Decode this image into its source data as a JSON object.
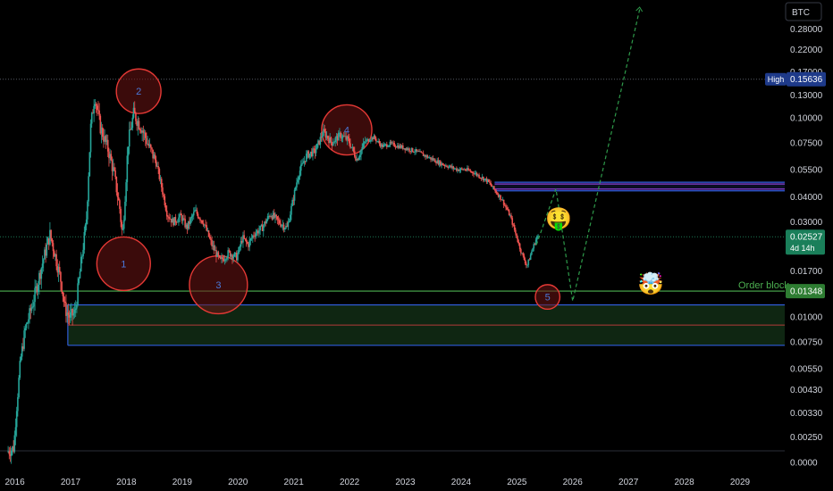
{
  "symbol_label": "BTC",
  "colors": {
    "background": "#000000",
    "up": "#26a69a",
    "down": "#ef5350",
    "grid_dotted": "#555a64",
    "axis_text": "#d1d4dc",
    "circle_fill": "#6b1414",
    "circle_stroke": "#e53935",
    "wave_label": "#4a78d8",
    "order_block_line": "#4caf50",
    "box_blue": "#2f5bd9",
    "box_fill": "#0f2612",
    "projection": "#2e9a4a"
  },
  "chart_data": {
    "type": "candlestick",
    "pair": "BTC",
    "y_scale": "log",
    "y_ticks": [
      {
        "value": 0.28,
        "label": "0.28000"
      },
      {
        "value": 0.22,
        "label": "0.22000"
      },
      {
        "value": 0.17,
        "label": "0.17000"
      },
      {
        "value": 0.13,
        "label": "0.13000"
      },
      {
        "value": 0.1,
        "label": "0.10000"
      },
      {
        "value": 0.075,
        "label": "0.07500"
      },
      {
        "value": 0.055,
        "label": "0.05500"
      },
      {
        "value": 0.04,
        "label": "0.04000"
      },
      {
        "value": 0.03,
        "label": "0.03000"
      },
      {
        "value": 0.017,
        "label": "0.01700"
      },
      {
        "value": 0.01,
        "label": "0.01000"
      },
      {
        "value": 0.0075,
        "label": "0.00750"
      },
      {
        "value": 0.0055,
        "label": "0.00550"
      },
      {
        "value": 0.0043,
        "label": "0.00430"
      },
      {
        "value": 0.0033,
        "label": "0.00330"
      },
      {
        "value": 0.0025,
        "label": "0.00250"
      },
      {
        "value": 0.0,
        "label": "0.0000"
      }
    ],
    "x_ticks": [
      "2016",
      "2017",
      "2018",
      "2019",
      "2020",
      "2021",
      "2022",
      "2023",
      "2024",
      "2025",
      "2026",
      "2027",
      "2028",
      "2029"
    ],
    "x_range": [
      2016.0,
      2029.9
    ],
    "price_path": [
      [
        2015.88,
        0.0021
      ],
      [
        2016.0,
        0.0022
      ],
      [
        2016.05,
        0.0035
      ],
      [
        2016.12,
        0.006
      ],
      [
        2016.2,
        0.0085
      ],
      [
        2016.35,
        0.012
      ],
      [
        2016.5,
        0.018
      ],
      [
        2016.65,
        0.026
      ],
      [
        2016.75,
        0.02
      ],
      [
        2016.85,
        0.015
      ],
      [
        2016.92,
        0.011
      ],
      [
        2017.0,
        0.01
      ],
      [
        2017.1,
        0.0105
      ],
      [
        2017.2,
        0.018
      ],
      [
        2017.3,
        0.03
      ],
      [
        2017.38,
        0.09
      ],
      [
        2017.45,
        0.13
      ],
      [
        2017.55,
        0.09
      ],
      [
        2017.7,
        0.068
      ],
      [
        2017.8,
        0.052
      ],
      [
        2017.9,
        0.035
      ],
      [
        2017.95,
        0.025
      ],
      [
        2018.05,
        0.075
      ],
      [
        2018.15,
        0.105
      ],
      [
        2018.3,
        0.088
      ],
      [
        2018.42,
        0.072
      ],
      [
        2018.55,
        0.06
      ],
      [
        2018.65,
        0.045
      ],
      [
        2018.75,
        0.033
      ],
      [
        2018.85,
        0.03
      ],
      [
        2019.0,
        0.032
      ],
      [
        2019.1,
        0.028
      ],
      [
        2019.25,
        0.034
      ],
      [
        2019.4,
        0.03
      ],
      [
        2019.55,
        0.023
      ],
      [
        2019.7,
        0.019
      ],
      [
        2019.85,
        0.021
      ],
      [
        2020.0,
        0.02
      ],
      [
        2020.1,
        0.025
      ],
      [
        2020.2,
        0.023
      ],
      [
        2020.3,
        0.026
      ],
      [
        2020.45,
        0.028
      ],
      [
        2020.6,
        0.033
      ],
      [
        2020.75,
        0.03
      ],
      [
        2020.9,
        0.028
      ],
      [
        2021.0,
        0.038
      ],
      [
        2021.1,
        0.052
      ],
      [
        2021.25,
        0.065
      ],
      [
        2021.4,
        0.068
      ],
      [
        2021.55,
        0.085
      ],
      [
        2021.7,
        0.075
      ],
      [
        2021.85,
        0.082
      ],
      [
        2022.0,
        0.077
      ],
      [
        2022.15,
        0.062
      ],
      [
        2022.3,
        0.076
      ],
      [
        2022.45,
        0.08
      ],
      [
        2022.6,
        0.072
      ],
      [
        2022.75,
        0.074
      ],
      [
        2022.9,
        0.072
      ],
      [
        2023.05,
        0.07
      ],
      [
        2023.2,
        0.068
      ],
      [
        2023.35,
        0.065
      ],
      [
        2023.5,
        0.062
      ],
      [
        2023.65,
        0.059
      ],
      [
        2023.8,
        0.057
      ],
      [
        2023.95,
        0.055
      ],
      [
        2024.1,
        0.055
      ],
      [
        2024.25,
        0.053
      ],
      [
        2024.4,
        0.05
      ],
      [
        2024.5,
        0.048
      ],
      [
        2024.6,
        0.044
      ],
      [
        2024.75,
        0.039
      ],
      [
        2024.9,
        0.032
      ],
      [
        2025.0,
        0.026
      ],
      [
        2025.1,
        0.021
      ],
      [
        2025.2,
        0.018
      ],
      [
        2025.3,
        0.022
      ],
      [
        2025.38,
        0.0253
      ]
    ],
    "wave_labels": [
      {
        "label": "1",
        "x": 2017.95,
        "y": 0.0185
      },
      {
        "label": "2",
        "x": 2018.22,
        "y": 0.136
      },
      {
        "label": "3",
        "x": 2019.65,
        "y": 0.0145
      },
      {
        "label": "4",
        "x": 2021.95,
        "y": 0.087
      },
      {
        "label": "5",
        "x": 2025.55,
        "y": 0.0126
      }
    ],
    "circles": [
      {
        "x": 2017.95,
        "y": 0.0185,
        "r": 0.48
      },
      {
        "x": 2018.22,
        "y": 0.136,
        "r": 0.4
      },
      {
        "x": 2019.65,
        "y": 0.0145,
        "r": 0.52
      },
      {
        "x": 2021.95,
        "y": 0.087,
        "r": 0.45
      },
      {
        "x": 2025.55,
        "y": 0.0126,
        "r": 0.22
      }
    ],
    "high_marker": {
      "label": "High",
      "value": 0.15636,
      "value_label": "0.15636"
    },
    "current_price": {
      "value": 0.02527,
      "label": "0.02527",
      "countdown": "4d 14h"
    },
    "order_block": {
      "label": "Order block",
      "value": 0.01348,
      "value_label": "0.01348"
    },
    "zones": [
      {
        "type": "resistance",
        "x_start": 2024.6,
        "x_end": 2029.9,
        "top": 0.0475,
        "bottom": 0.043
      },
      {
        "type": "demand",
        "x_start": 2016.95,
        "x_end": 2029.9,
        "top": 0.0115,
        "bottom": 0.0072,
        "mid": 0.0091
      }
    ],
    "projection_path": [
      [
        2025.35,
        0.023
      ],
      [
        2025.7,
        0.044
      ],
      [
        2026.0,
        0.012
      ],
      [
        2027.2,
        0.35
      ]
    ],
    "emojis": [
      {
        "symbol": "🤑",
        "x": 2025.75,
        "y": 0.0315
      },
      {
        "symbol": "😱",
        "x": 2026.9,
        "y": 0.0232
      },
      {
        "symbol": "🤯",
        "x": 2027.4,
        "y": 0.0148
      },
      {
        "symbol": "😇",
        "x": 2029.55,
        "y": 0.148
      }
    ]
  }
}
